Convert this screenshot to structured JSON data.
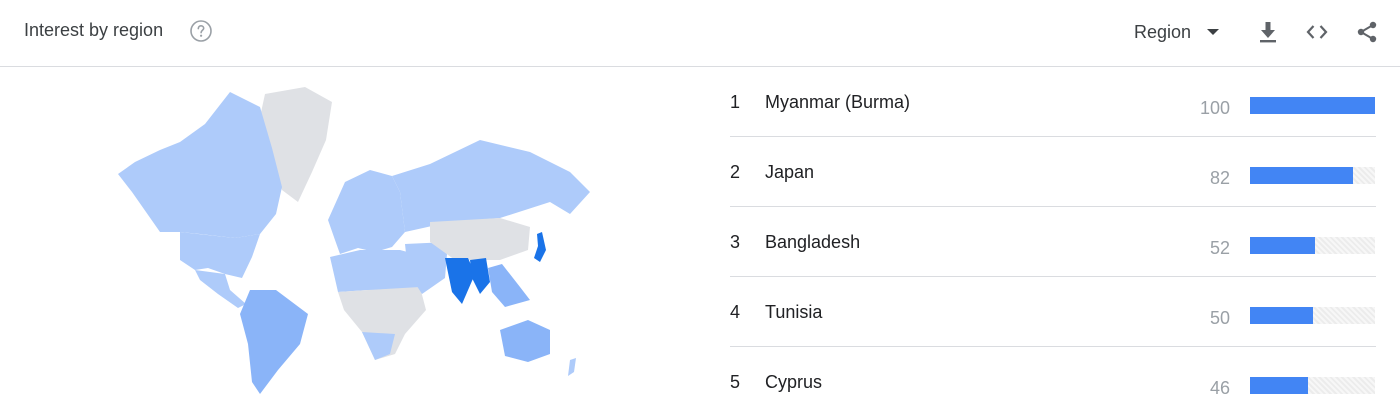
{
  "header": {
    "title": "Interest by region",
    "region_label": "Region"
  },
  "colors": {
    "accent": "#4285f4",
    "map_low": "#aecbfa",
    "map_mid": "#8ab4f8",
    "map_high": "#1a73e8",
    "map_none": "#dfe1e5"
  },
  "icons": [
    "help-icon",
    "caret-down-icon",
    "download-icon",
    "embed-code-icon",
    "share-icon"
  ],
  "regions": [
    {
      "rank": "1",
      "name": "Myanmar (Burma)",
      "value": "100",
      "score": 100
    },
    {
      "rank": "2",
      "name": "Japan",
      "value": "82",
      "score": 82
    },
    {
      "rank": "3",
      "name": "Bangladesh",
      "value": "52",
      "score": 52
    },
    {
      "rank": "4",
      "name": "Tunisia",
      "value": "50",
      "score": 50
    },
    {
      "rank": "5",
      "name": "Cyprus",
      "value": "46",
      "score": 46
    }
  ]
}
